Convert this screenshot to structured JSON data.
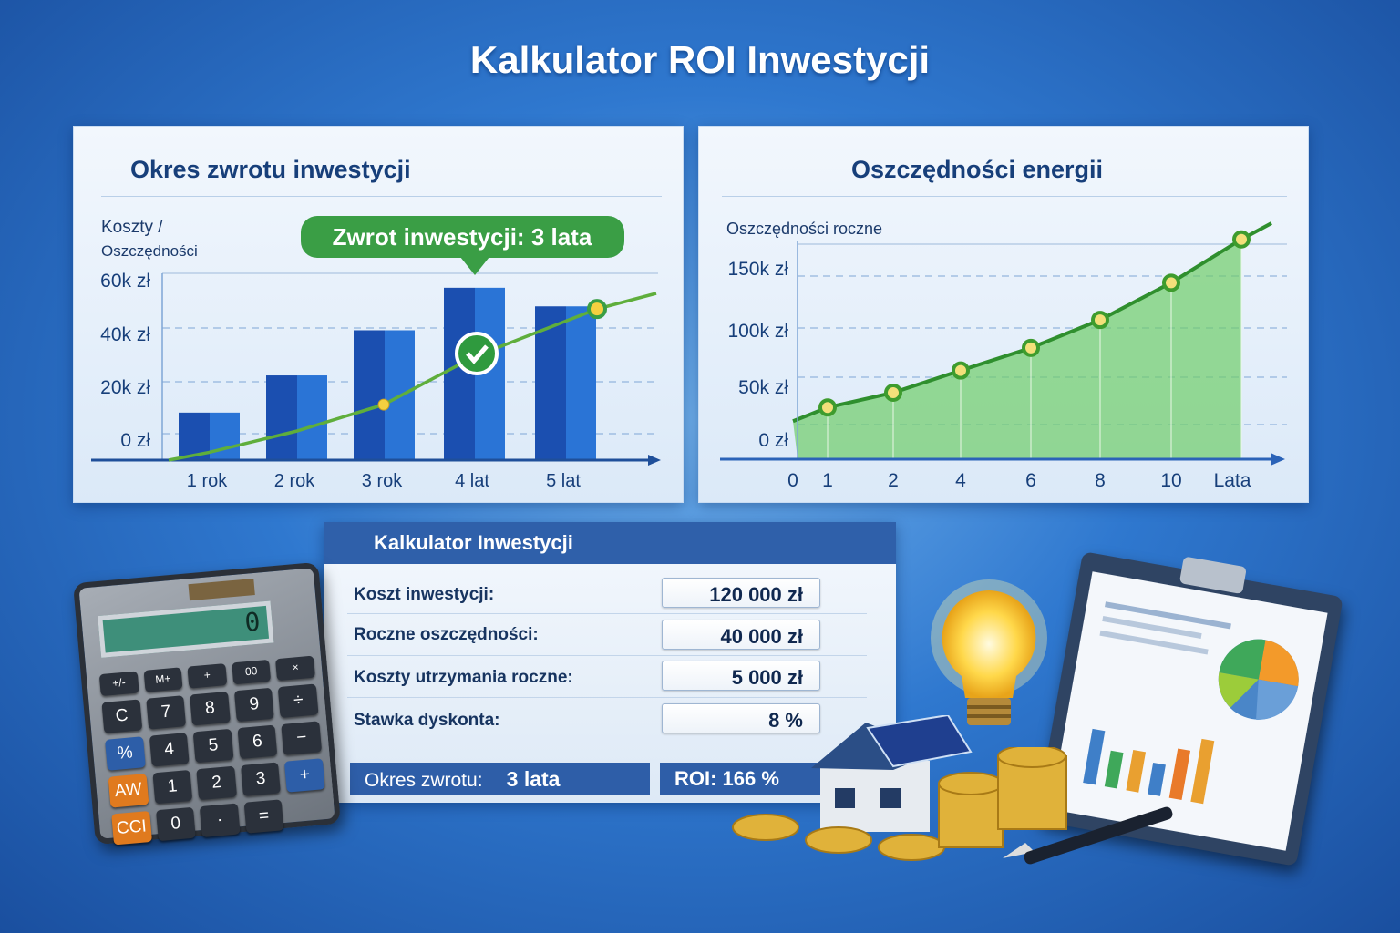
{
  "title": "Kalkulator ROI Inwestycji",
  "colors": {
    "accent_blue": "#2f60aa",
    "bar_blue": "#1f5fc0",
    "line_green": "#4caf3a",
    "area_green": "#7fd37a",
    "badge_green": "#3a9e45"
  },
  "chart_data": [
    {
      "type": "bar",
      "title": "Okres zwrotu inwestycji",
      "ylabel": "Koszty / Oszczędności",
      "ylabel_lines": [
        "Koszty /",
        "Oszczędności"
      ],
      "yticks": [
        "0 zł",
        "20k zł",
        "40k zł",
        "60k zł"
      ],
      "ytick_values": [
        0,
        20000,
        40000,
        60000
      ],
      "categories": [
        "1 rok",
        "2 rok",
        "3 rok",
        "4 lat",
        "5 lat"
      ],
      "bars": [
        10000,
        24000,
        41000,
        57000,
        50000
      ],
      "line": [
        -5000,
        3000,
        13000,
        31000,
        49000
      ],
      "annotation": "Zwrot inwestycji: 3 lata",
      "annotation_marker": "check-icon",
      "grid": true
    },
    {
      "type": "area",
      "title": "Oszczędności energii",
      "ylabel": "Oszczędności roczne",
      "xlabel": "Lata",
      "yticks": [
        "0 zł",
        "50k zł",
        "100k zł",
        "150k zł"
      ],
      "ytick_values": [
        0,
        50000,
        100000,
        150000
      ],
      "origin_label": "0",
      "categories": [
        "1",
        "2",
        "4",
        "6",
        "8",
        "10",
        ""
      ],
      "start_value": 17000,
      "values": [
        30000,
        44000,
        64000,
        84000,
        108000,
        138000,
        173000
      ],
      "grid": true
    }
  ],
  "calculator": {
    "title": "Kalkulator Inwestycji",
    "rows": [
      {
        "label": "Koszt inwestycji:",
        "value": "120 000 zł"
      },
      {
        "label": "Roczne oszczędności:",
        "value": "40 000 zł"
      },
      {
        "label": "Koszty utrzymania roczne:",
        "value": "5 000 zł"
      },
      {
        "label": "Stawka dyskonta:",
        "value": "8 %"
      }
    ],
    "payback_label": "Okres zwrotu:",
    "payback_value": "3 lata",
    "roi": "ROI: 166 %"
  },
  "device_calculator": {
    "display": "0",
    "keys": [
      "+/-",
      "M+",
      "+",
      "00",
      "×",
      "C",
      "7",
      "8",
      "9",
      "÷",
      "%",
      "4",
      "5",
      "6",
      "−",
      "AW",
      "1",
      "2",
      "3",
      "+",
      "CCI",
      "0",
      "·",
      "="
    ]
  }
}
